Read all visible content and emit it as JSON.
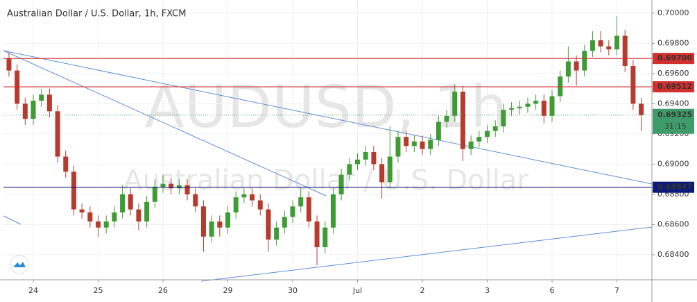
{
  "chart_data": {
    "type": "candlestick",
    "title": "Australian Dollar / U.S. Dollar, 1h, FXCM",
    "watermark": "AUDUSD, 1h",
    "watermark_subtitle": "Australian Dollar / U.S. Dollar",
    "up_color": "#3f9c35",
    "down_color": "#b73a2e",
    "xlim": [
      -0.46,
      9.54
    ],
    "xticks": [
      {
        "value": 0,
        "label": "24"
      },
      {
        "value": 1,
        "label": "25"
      },
      {
        "value": 2,
        "label": "26"
      },
      {
        "value": 3,
        "label": "29"
      },
      {
        "value": 4,
        "label": "30"
      },
      {
        "value": 5,
        "label": "Jul"
      },
      {
        "value": 6,
        "label": "2"
      },
      {
        "value": 7,
        "label": "3"
      },
      {
        "value": 8,
        "label": "6"
      },
      {
        "value": 9,
        "label": "7"
      }
    ],
    "ylim": [
      0.68234,
      0.70087
    ],
    "yticks": [
      {
        "value": 0.684,
        "label": "0.68400"
      },
      {
        "value": 0.686,
        "label": "0.68600"
      },
      {
        "value": 0.688,
        "label": "0.68800"
      },
      {
        "value": 0.69,
        "label": "0.69000"
      },
      {
        "value": 0.692,
        "label": "0.69200"
      },
      {
        "value": 0.694,
        "label": "0.69400"
      },
      {
        "value": 0.696,
        "label": "0.69600"
      },
      {
        "value": 0.698,
        "label": "0.69800"
      },
      {
        "value": 0.7,
        "label": "0.70000"
      }
    ],
    "levels": [
      {
        "value": 0.697,
        "label": "0.69700",
        "color": "#d32f2f"
      },
      {
        "value": 0.69512,
        "label": "0.69512",
        "color": "#d32f2f"
      },
      {
        "value": 0.68847,
        "label": "0.68847",
        "color": "#0d1a7a"
      }
    ],
    "last_price": {
      "value": 0.69325,
      "label": "0.69325",
      "countdown": "31:15",
      "color": "#3f9c6a"
    },
    "x": [
      -0.375,
      -0.25,
      -0.125,
      0,
      0.125,
      0.25,
      0.375,
      0.5,
      0.625,
      0.75,
      0.875,
      1,
      1.125,
      1.25,
      1.375,
      1.5,
      1.625,
      1.75,
      1.875,
      2,
      2.125,
      2.25,
      2.375,
      2.5,
      2.625,
      2.75,
      2.875,
      3,
      3.125,
      3.25,
      3.375,
      3.5,
      3.625,
      3.75,
      3.875,
      4,
      4.125,
      4.25,
      4.375,
      4.5,
      4.625,
      4.75,
      4.875,
      5,
      5.125,
      5.25,
      5.375,
      5.5,
      5.625,
      5.75,
      5.875,
      6,
      6.125,
      6.25,
      6.375,
      6.5,
      6.625,
      6.75,
      6.875,
      7,
      7.125,
      7.25,
      7.375,
      7.5,
      7.625,
      7.75,
      7.875,
      8,
      8.125,
      8.25,
      8.375,
      8.5,
      8.625,
      8.75,
      8.875,
      9,
      9.125,
      9.25,
      9.375
    ],
    "open": [
      0.697,
      0.6962,
      0.694,
      0.693,
      0.6942,
      0.6946,
      0.6935,
      0.6905,
      0.6895,
      0.687,
      0.6868,
      0.6862,
      0.6858,
      0.6862,
      0.6868,
      0.688,
      0.687,
      0.6862,
      0.6875,
      0.6885,
      0.6887,
      0.6884,
      0.6886,
      0.688,
      0.6872,
      0.6852,
      0.6862,
      0.6858,
      0.6868,
      0.6878,
      0.688,
      0.6876,
      0.687,
      0.685,
      0.6858,
      0.6865,
      0.6872,
      0.6878,
      0.6862,
      0.6845,
      0.6858,
      0.688,
      0.6893,
      0.69,
      0.6903,
      0.6908,
      0.69,
      0.6888,
      0.6905,
      0.6918,
      0.6912,
      0.6915,
      0.691,
      0.6916,
      0.6928,
      0.6932,
      0.6948,
      0.691,
      0.6915,
      0.6918,
      0.6922,
      0.6925,
      0.6936,
      0.6937,
      0.6938,
      0.694,
      0.6942,
      0.6932,
      0.6945,
      0.6958,
      0.6968,
      0.6962,
      0.6975,
      0.6982,
      0.6978,
      0.6976,
      0.6985,
      0.6965,
      0.694
    ],
    "high": [
      0.6974,
      0.6966,
      0.6944,
      0.6946,
      0.695,
      0.695,
      0.6939,
      0.6909,
      0.6899,
      0.6874,
      0.6872,
      0.6866,
      0.6866,
      0.6872,
      0.6886,
      0.6884,
      0.6874,
      0.6879,
      0.689,
      0.6893,
      0.6891,
      0.689,
      0.689,
      0.6884,
      0.6876,
      0.6866,
      0.6866,
      0.6872,
      0.6882,
      0.6884,
      0.6884,
      0.688,
      0.6874,
      0.6862,
      0.6869,
      0.6876,
      0.6884,
      0.6882,
      0.6866,
      0.6862,
      0.6884,
      0.6897,
      0.6904,
      0.6907,
      0.6912,
      0.6912,
      0.6904,
      0.6925,
      0.6922,
      0.6922,
      0.6919,
      0.6919,
      0.692,
      0.6932,
      0.6936,
      0.6953,
      0.6952,
      0.6919,
      0.6922,
      0.6926,
      0.6929,
      0.694,
      0.6941,
      0.6942,
      0.6944,
      0.6946,
      0.6946,
      0.6949,
      0.6962,
      0.6978,
      0.6972,
      0.6979,
      0.6988,
      0.6988,
      0.6982,
      0.6998,
      0.6989,
      0.6969,
      0.6944
    ],
    "low": [
      0.6958,
      0.6936,
      0.6926,
      0.6926,
      0.6938,
      0.6931,
      0.6901,
      0.6891,
      0.6866,
      0.6864,
      0.6858,
      0.6852,
      0.6854,
      0.6858,
      0.6864,
      0.6866,
      0.6856,
      0.6858,
      0.6871,
      0.6881,
      0.688,
      0.688,
      0.6876,
      0.6868,
      0.6842,
      0.6848,
      0.6852,
      0.6854,
      0.6864,
      0.6874,
      0.6872,
      0.6866,
      0.6842,
      0.6846,
      0.6854,
      0.6861,
      0.6868,
      0.6858,
      0.6833,
      0.6841,
      0.6854,
      0.6876,
      0.6889,
      0.6896,
      0.6899,
      0.6896,
      0.6877,
      0.6884,
      0.6901,
      0.6908,
      0.6908,
      0.6906,
      0.6906,
      0.6912,
      0.6924,
      0.6928,
      0.6902,
      0.6906,
      0.6911,
      0.6914,
      0.6918,
      0.6921,
      0.6932,
      0.6933,
      0.6934,
      0.6936,
      0.6927,
      0.6928,
      0.6941,
      0.6954,
      0.6952,
      0.6958,
      0.6971,
      0.6974,
      0.6972,
      0.6972,
      0.6961,
      0.6936,
      0.6922
    ],
    "close": [
      0.6962,
      0.694,
      0.693,
      0.6942,
      0.6946,
      0.6935,
      0.6905,
      0.6895,
      0.687,
      0.6868,
      0.6862,
      0.6858,
      0.6862,
      0.6868,
      0.688,
      0.687,
      0.6862,
      0.6875,
      0.6885,
      0.6887,
      0.6884,
      0.6886,
      0.688,
      0.6872,
      0.6852,
      0.6862,
      0.6858,
      0.6868,
      0.6878,
      0.688,
      0.6876,
      0.687,
      0.685,
      0.6858,
      0.6865,
      0.6872,
      0.6878,
      0.6862,
      0.6845,
      0.6858,
      0.688,
      0.6893,
      0.69,
      0.6903,
      0.6908,
      0.69,
      0.6888,
      0.6905,
      0.6918,
      0.6912,
      0.6915,
      0.691,
      0.6916,
      0.6928,
      0.6932,
      0.6948,
      0.691,
      0.6915,
      0.6918,
      0.6922,
      0.6925,
      0.6936,
      0.6937,
      0.6938,
      0.694,
      0.6942,
      0.6932,
      0.6945,
      0.6958,
      0.6968,
      0.6962,
      0.6975,
      0.6982,
      0.6978,
      0.6976,
      0.6985,
      0.6965,
      0.694,
      0.69325
    ]
  }
}
